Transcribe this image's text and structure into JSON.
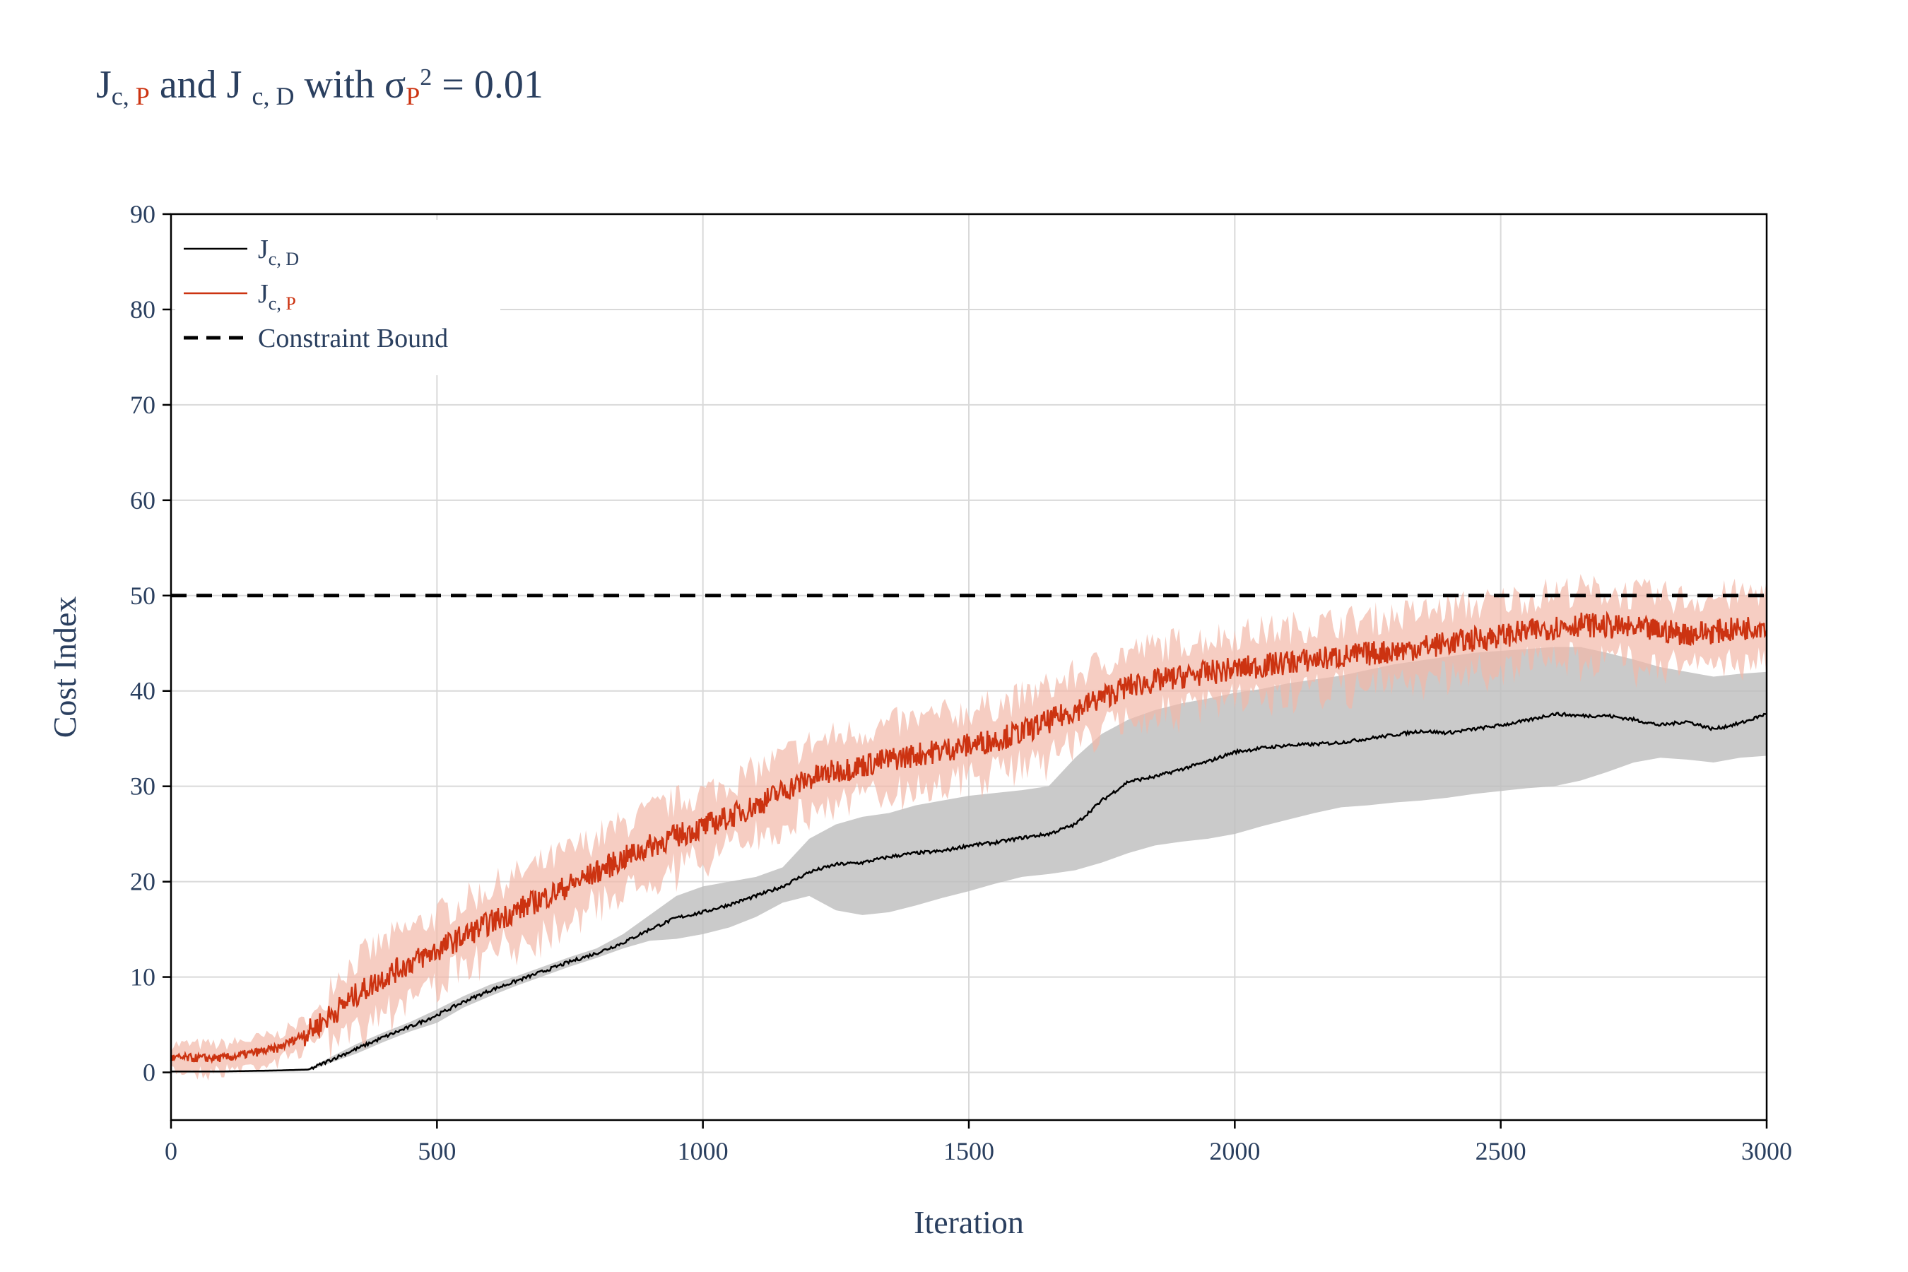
{
  "title": {
    "base1": "J",
    "sub1a": "c, ",
    "sub1b": "P",
    "mid": " and J ",
    "sub2": "c, D",
    "tail1": "  with σ",
    "sub3": "P",
    "sup": "2",
    "tail2": " = 0.01"
  },
  "colors": {
    "red": "#cc3311",
    "red_band": "#f2b8a8",
    "black": "#000000",
    "gray_band": "#bdbdbd",
    "grid": "#d9d9d9",
    "text": "#2a3f5f"
  },
  "chart_data": {
    "type": "line",
    "xlabel": "Iteration",
    "ylabel": "Cost Index",
    "xlim": [
      0,
      3000
    ],
    "ylim": [
      -5,
      90
    ],
    "xticks": [
      0,
      500,
      1000,
      1500,
      2000,
      2500,
      3000
    ],
    "yticks": [
      0,
      10,
      20,
      30,
      40,
      50,
      60,
      70,
      80,
      90
    ],
    "grid": true,
    "legend_position": "top-left",
    "legend": [
      {
        "label": "J",
        "sub": "c, D",
        "style": "solid",
        "color": "#000000"
      },
      {
        "label": "J",
        "sub_prefix": "c, ",
        "sub_red": "P",
        "style": "solid",
        "color": "#cc3311"
      },
      {
        "label": "Constraint Bound",
        "style": "dashed",
        "color": "#000000"
      }
    ],
    "constraint_bound": 50,
    "series": [
      {
        "name": "J c, D",
        "color": "#000000",
        "x": [
          0,
          100,
          200,
          260,
          300,
          350,
          400,
          450,
          500,
          550,
          600,
          650,
          700,
          750,
          800,
          850,
          900,
          950,
          1000,
          1050,
          1100,
          1150,
          1200,
          1250,
          1300,
          1350,
          1400,
          1450,
          1500,
          1550,
          1600,
          1650,
          1700,
          1750,
          1800,
          1850,
          1900,
          1950,
          2000,
          2050,
          2100,
          2150,
          2200,
          2250,
          2300,
          2350,
          2400,
          2450,
          2500,
          2550,
          2600,
          2650,
          2700,
          2750,
          2800,
          2850,
          2900,
          2950,
          3000
        ],
        "y": [
          0.1,
          0.1,
          0.2,
          0.3,
          1.3,
          2.5,
          3.7,
          4.8,
          6.0,
          7.4,
          8.6,
          9.6,
          10.6,
          11.6,
          12.5,
          13.6,
          15.0,
          16.2,
          16.8,
          17.6,
          18.5,
          19.5,
          21.0,
          21.8,
          22.0,
          22.6,
          23.0,
          23.2,
          23.8,
          24.1,
          24.6,
          25.0,
          26.0,
          28.5,
          30.5,
          31.0,
          31.8,
          32.6,
          33.6,
          34.0,
          34.3,
          34.4,
          34.6,
          35.0,
          35.4,
          35.8,
          35.6,
          36.0,
          36.4,
          36.9,
          37.6,
          37.4,
          37.4,
          37.0,
          36.4,
          36.8,
          36.0,
          36.6,
          37.6
        ],
        "band_lower": [
          0.0,
          0.0,
          0.1,
          0.2,
          1.0,
          2.0,
          3.2,
          4.3,
          5.2,
          6.8,
          8.0,
          9.1,
          10.1,
          11.1,
          12.0,
          13.0,
          13.8,
          14.0,
          14.5,
          15.2,
          16.3,
          17.8,
          18.5,
          17.0,
          16.5,
          16.8,
          17.5,
          18.3,
          19.0,
          19.8,
          20.5,
          20.8,
          21.2,
          22.0,
          23.0,
          23.8,
          24.2,
          24.5,
          25.0,
          25.8,
          26.5,
          27.2,
          27.8,
          28.0,
          28.3,
          28.5,
          28.8,
          29.2,
          29.5,
          29.8,
          30.0,
          30.6,
          31.5,
          32.5,
          33.0,
          32.8,
          32.5,
          33.0,
          33.2
        ],
        "band_upper": [
          0.2,
          0.2,
          0.3,
          0.4,
          1.6,
          3.0,
          4.2,
          5.3,
          6.6,
          8.0,
          9.2,
          10.1,
          11.1,
          12.1,
          13.0,
          14.5,
          16.5,
          18.5,
          19.5,
          20.0,
          20.5,
          21.5,
          24.5,
          26.0,
          26.8,
          27.2,
          28.0,
          28.5,
          29.0,
          29.3,
          29.6,
          30.0,
          33.0,
          35.5,
          37.0,
          38.0,
          38.7,
          39.2,
          39.8,
          40.2,
          40.8,
          41.2,
          41.6,
          42.2,
          42.8,
          43.2,
          43.6,
          44.0,
          44.2,
          44.4,
          44.6,
          44.6,
          44.0,
          43.3,
          42.5,
          42.0,
          41.5,
          41.8,
          42.0
        ]
      },
      {
        "name": "J c, P",
        "color": "#cc3311",
        "x": [
          0,
          100,
          200,
          260,
          300,
          350,
          400,
          450,
          500,
          550,
          600,
          650,
          700,
          750,
          800,
          850,
          900,
          950,
          1000,
          1050,
          1100,
          1150,
          1200,
          1250,
          1300,
          1350,
          1400,
          1450,
          1500,
          1550,
          1600,
          1650,
          1700,
          1750,
          1800,
          1850,
          1900,
          1950,
          2000,
          2050,
          2100,
          2150,
          2200,
          2250,
          2300,
          2350,
          2400,
          2450,
          2500,
          2550,
          2600,
          2650,
          2700,
          2750,
          2800,
          2850,
          2900,
          2950,
          3000
        ],
        "y": [
          1.5,
          1.5,
          2.5,
          4.3,
          6.0,
          8.2,
          10.0,
          11.5,
          12.8,
          14.3,
          15.7,
          17.0,
          18.3,
          19.6,
          21.0,
          22.4,
          23.7,
          24.8,
          25.7,
          26.8,
          28.0,
          29.5,
          30.8,
          31.6,
          32.2,
          32.8,
          33.3,
          33.8,
          34.3,
          34.9,
          35.7,
          36.8,
          38.0,
          39.3,
          40.5,
          41.0,
          41.5,
          41.9,
          42.3,
          42.6,
          43.0,
          43.3,
          43.6,
          43.9,
          44.2,
          44.6,
          45.0,
          45.4,
          45.8,
          46.2,
          46.7,
          47.0,
          46.8,
          46.5,
          46.3,
          46.0,
          46.2,
          46.5,
          47.0
        ],
        "band_width": 4.0
      }
    ]
  }
}
